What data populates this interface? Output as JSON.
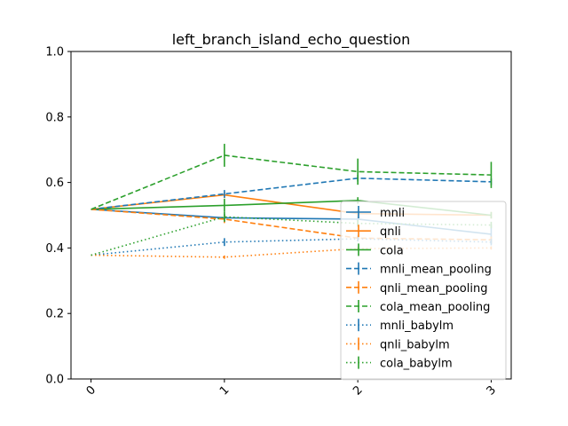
{
  "chart_data": {
    "type": "line",
    "title": "left_branch_island_echo_question",
    "xlabel": "",
    "ylabel": "",
    "x": [
      0,
      1,
      2,
      3
    ],
    "x_tick_labels": [
      "0",
      "1",
      "2",
      "3"
    ],
    "ylim": [
      0.0,
      1.0
    ],
    "y_ticks": [
      0.0,
      0.2,
      0.4,
      0.6,
      0.8,
      1.0
    ],
    "y_tick_labels": [
      "0.0",
      "0.2",
      "0.4",
      "0.6",
      "0.8",
      "1.0"
    ],
    "grid": false,
    "legend_position": "lower-right",
    "series": [
      {
        "name": "mnli",
        "color": "#1f77b4",
        "style": "solid",
        "values": [
          0.518,
          0.492,
          0.488,
          0.442
        ],
        "errors": [
          0,
          0.012,
          0.008,
          0.03
        ]
      },
      {
        "name": "qnli",
        "color": "#ff7f0e",
        "style": "solid",
        "values": [
          0.518,
          0.562,
          0.505,
          0.5
        ],
        "errors": [
          0,
          0.01,
          0.01,
          0.01
        ]
      },
      {
        "name": "cola",
        "color": "#2ca02c",
        "style": "solid",
        "values": [
          0.518,
          0.53,
          0.545,
          0.5
        ],
        "errors": [
          0,
          0.02,
          0.01,
          0.01
        ]
      },
      {
        "name": "mnli_mean_pooling",
        "color": "#1f77b4",
        "style": "dashed",
        "values": [
          0.518,
          0.565,
          0.613,
          0.602
        ],
        "errors": [
          0,
          0.012,
          0.01,
          0.01
        ]
      },
      {
        "name": "qnli_mean_pooling",
        "color": "#ff7f0e",
        "style": "dashed",
        "values": [
          0.518,
          0.488,
          0.43,
          0.425
        ],
        "errors": [
          0,
          0.012,
          0.01,
          0.01
        ]
      },
      {
        "name": "cola_mean_pooling",
        "color": "#2ca02c",
        "style": "dashed",
        "values": [
          0.518,
          0.683,
          0.633,
          0.623
        ],
        "errors": [
          0,
          0.035,
          0.04,
          0.04
        ]
      },
      {
        "name": "mnli_babylm",
        "color": "#1f77b4",
        "style": "dotted",
        "values": [
          0.378,
          0.418,
          0.428,
          0.418
        ],
        "errors": [
          0,
          0.012,
          0.008,
          0.01
        ]
      },
      {
        "name": "qnli_babylm",
        "color": "#ff7f0e",
        "style": "dotted",
        "values": [
          0.378,
          0.372,
          0.398,
          0.4
        ],
        "errors": [
          0,
          0.005,
          0.005,
          0.005
        ]
      },
      {
        "name": "cola_babylm",
        "color": "#2ca02c",
        "style": "dotted",
        "values": [
          0.378,
          0.495,
          0.475,
          0.47
        ],
        "errors": [
          0,
          0.015,
          0.01,
          0.01
        ]
      }
    ]
  }
}
